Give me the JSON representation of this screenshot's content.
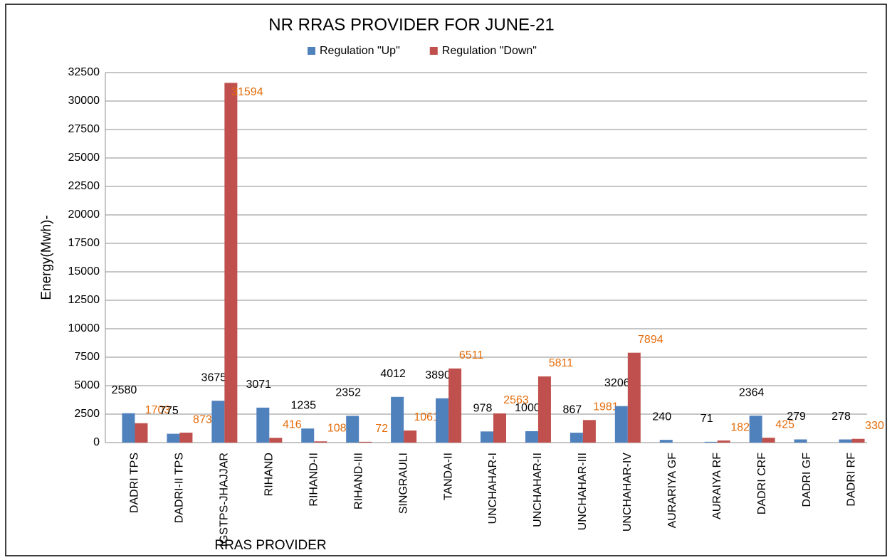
{
  "chart_data": {
    "type": "bar",
    "title": "NR RRAS PROVIDER FOR JUNE-21",
    "x_label": "RRAS PROVIDER",
    "y_label": "Energy(Mwh)-",
    "categories": [
      "DADRI TPS",
      "DADRI-II TPS",
      "IGSTPS-JHAJJAR",
      "RIHAND",
      "RIHAND-II",
      "RIHAND-III",
      "SINGRAULI",
      "TANDA-II",
      "UNCHAHAR-I",
      "UNCHAHAR-II",
      "UNCHAHAR-III",
      "UNCHAHAR-IV",
      "AURARIYA GF",
      "AURAIYA RF",
      "DADRI CRF",
      "DADRI GF",
      "DADRI RF"
    ],
    "series": [
      {
        "name": "Regulation \"Up\"",
        "color": "#4f81bd",
        "label_color": "#000000",
        "values": [
          2580,
          775,
          3675,
          3071,
          1235,
          2352,
          4012,
          3890,
          978,
          1000,
          867,
          3206,
          240,
          71,
          2364,
          279,
          278
        ]
      },
      {
        "name": "Regulation \"Down\"",
        "color": "#c0504d",
        "label_color": "#e46c0a",
        "values": [
          1703,
          873,
          31594,
          416,
          108,
          72,
          1061,
          6511,
          2563,
          5811,
          1981,
          7894,
          null,
          182,
          425,
          null,
          330
        ]
      }
    ],
    "ylim": [
      0,
      32500
    ],
    "yticks": [
      0,
      2500,
      5000,
      7500,
      10000,
      12500,
      15000,
      17500,
      20000,
      22500,
      25000,
      27500,
      30000,
      32500
    ],
    "grid": true,
    "legend": "top"
  }
}
